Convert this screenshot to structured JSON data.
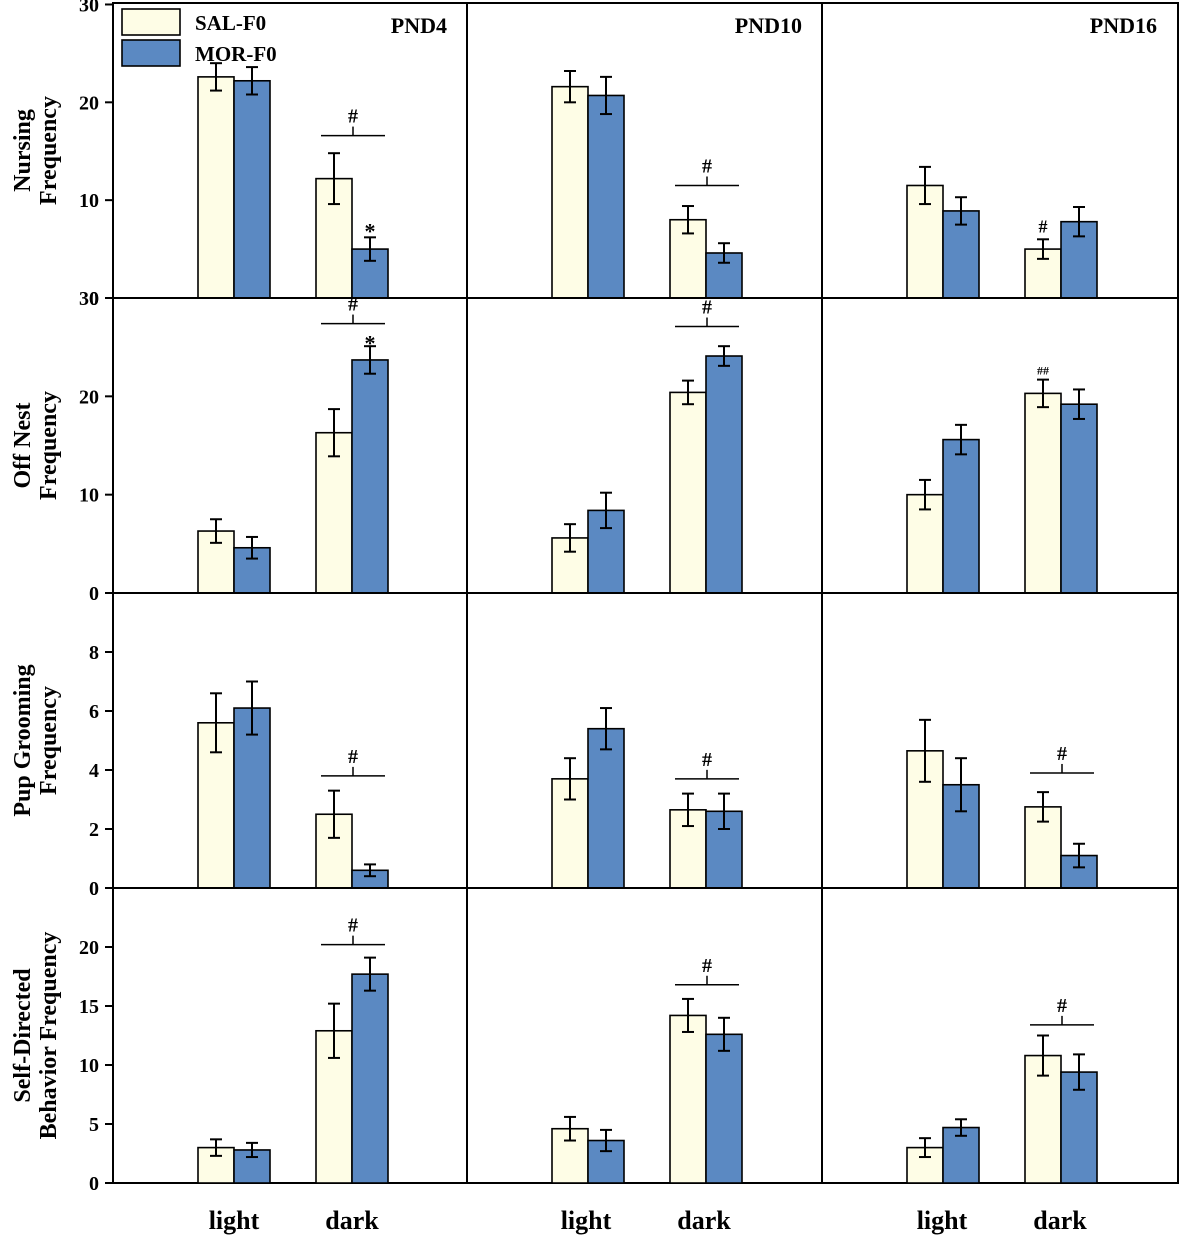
{
  "chart_data": {
    "type": "bar",
    "legend": {
      "position": "top-left",
      "entries": [
        {
          "name": "SAL-F0",
          "color": "#fefde6"
        },
        {
          "name": "MOR-F0",
          "color": "#5b89c2"
        }
      ]
    },
    "categories": [
      "light",
      "dark"
    ],
    "columns": [
      "PND4",
      "PND10",
      "PND16"
    ],
    "rows": [
      {
        "ylabel_lines": [
          "Nursing",
          "Frequency"
        ],
        "ylim": [
          0,
          30
        ],
        "ticks": [
          0,
          10,
          20,
          30
        ],
        "panels": [
          {
            "sal": [
              22.6,
              12.2
            ],
            "sal_err": [
              1.4,
              2.6
            ],
            "mor": [
              22.2,
              5.0
            ],
            "mor_err": [
              1.4,
              1.2
            ],
            "annotations": [
              {
                "text": "#",
                "kind": "bracket",
                "cat": 1,
                "y": 16.6
              },
              {
                "text": "*",
                "kind": "mark",
                "cat": 1,
                "series": "mor",
                "y": 6.9
              }
            ]
          },
          {
            "sal": [
              21.6,
              8.0
            ],
            "sal_err": [
              1.6,
              1.4
            ],
            "mor": [
              20.7,
              4.6
            ],
            "mor_err": [
              1.9,
              1.0
            ],
            "annotations": [
              {
                "text": "#",
                "kind": "bracket",
                "cat": 1,
                "y": 11.5
              }
            ]
          },
          {
            "sal": [
              11.5,
              5.0
            ],
            "sal_err": [
              1.9,
              1.0
            ],
            "mor": [
              8.9,
              7.8
            ],
            "mor_err": [
              1.4,
              1.5
            ],
            "annotations": [
              {
                "text": "#",
                "kind": "mark",
                "cat": 1,
                "series": "sal",
                "y": 6.7
              }
            ]
          }
        ]
      },
      {
        "ylabel_lines": [
          "Off Nest",
          "Frequency"
        ],
        "ylim": [
          0,
          30
        ],
        "ticks": [
          0,
          10,
          20,
          30
        ],
        "panels": [
          {
            "sal": [
              6.3,
              16.3
            ],
            "sal_err": [
              1.2,
              2.4
            ],
            "mor": [
              4.6,
              23.7
            ],
            "mor_err": [
              1.1,
              1.4
            ],
            "annotations": [
              {
                "text": "#",
                "kind": "bracket",
                "cat": 1,
                "y": 27.4
              },
              {
                "text": "*",
                "kind": "mark",
                "cat": 1,
                "series": "mor",
                "y": 25.5
              }
            ]
          },
          {
            "sal": [
              5.6,
              20.4
            ],
            "sal_err": [
              1.4,
              1.2
            ],
            "mor": [
              8.4,
              24.1
            ],
            "mor_err": [
              1.8,
              1.0
            ],
            "annotations": [
              {
                "text": "#",
                "kind": "bracket",
                "cat": 1,
                "y": 27.1
              }
            ]
          },
          {
            "sal": [
              10.0,
              20.3
            ],
            "sal_err": [
              1.5,
              1.4
            ],
            "mor": [
              15.6,
              19.2
            ],
            "mor_err": [
              1.5,
              1.5
            ],
            "annotations": [
              {
                "text": "##",
                "kind": "mark",
                "cat": 1,
                "series": "sal",
                "y": 22.2
              }
            ]
          }
        ]
      },
      {
        "ylabel_lines": [
          "Pup Grooming",
          "Frequency"
        ],
        "ylim": [
          0,
          10
        ],
        "ticks": [
          0,
          2,
          4,
          6,
          8
        ],
        "panels": [
          {
            "sal": [
              5.6,
              2.5
            ],
            "sal_err": [
              1.0,
              0.8
            ],
            "mor": [
              6.1,
              0.6
            ],
            "mor_err": [
              0.9,
              0.2
            ],
            "annotations": [
              {
                "text": "#",
                "kind": "bracket",
                "cat": 1,
                "y": 3.8
              }
            ]
          },
          {
            "sal": [
              3.7,
              2.65
            ],
            "sal_err": [
              0.7,
              0.55
            ],
            "mor": [
              5.4,
              2.6
            ],
            "mor_err": [
              0.7,
              0.6
            ],
            "annotations": [
              {
                "text": "#",
                "kind": "bracket",
                "cat": 1,
                "y": 3.7
              }
            ]
          },
          {
            "sal": [
              4.65,
              2.75
            ],
            "sal_err": [
              1.05,
              0.5
            ],
            "mor": [
              3.5,
              1.1
            ],
            "mor_err": [
              0.9,
              0.4
            ],
            "annotations": [
              {
                "text": "#",
                "kind": "bracket",
                "cat": 1,
                "y": 3.9
              }
            ]
          }
        ]
      },
      {
        "ylabel_lines": [
          "Self-Directed",
          "Behavior Frequency"
        ],
        "ylim": [
          0,
          25
        ],
        "ticks": [
          0,
          5,
          10,
          15,
          20
        ],
        "panels": [
          {
            "sal": [
              3.0,
              12.9
            ],
            "sal_err": [
              0.7,
              2.3
            ],
            "mor": [
              2.8,
              17.7
            ],
            "mor_err": [
              0.6,
              1.4
            ],
            "annotations": [
              {
                "text": "#",
                "kind": "bracket",
                "cat": 1,
                "y": 20.2
              }
            ]
          },
          {
            "sal": [
              4.6,
              14.2
            ],
            "sal_err": [
              1.0,
              1.4
            ],
            "mor": [
              3.6,
              12.6
            ],
            "mor_err": [
              0.9,
              1.4
            ],
            "annotations": [
              {
                "text": "#",
                "kind": "bracket",
                "cat": 1,
                "y": 16.8
              }
            ]
          },
          {
            "sal": [
              3.0,
              10.8
            ],
            "sal_err": [
              0.8,
              1.7
            ],
            "mor": [
              4.7,
              9.4
            ],
            "mor_err": [
              0.7,
              1.5
            ],
            "annotations": [
              {
                "text": "#",
                "kind": "bracket",
                "cat": 1,
                "y": 13.4
              }
            ]
          }
        ]
      }
    ]
  }
}
